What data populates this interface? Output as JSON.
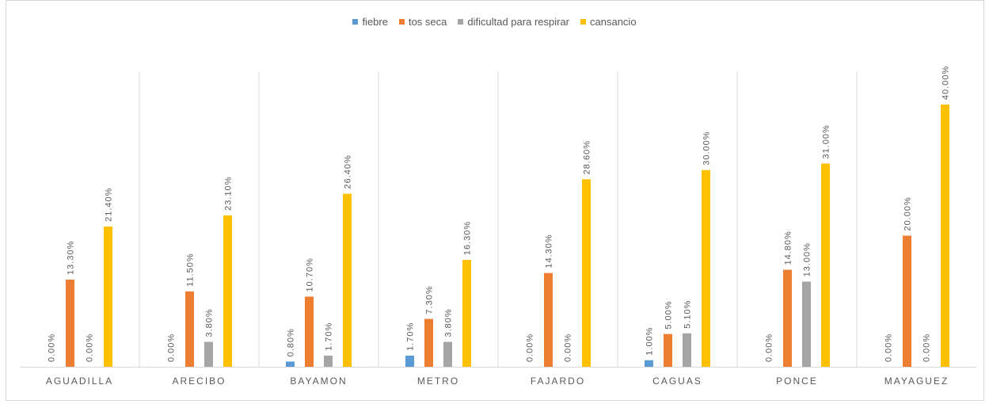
{
  "chart_data": {
    "type": "bar",
    "categories": [
      "AGUADILLA",
      "ARECIBO",
      "BAYAMON",
      "METRO",
      "FAJARDO",
      "CAGUAS",
      "PONCE",
      "MAYAGUEZ"
    ],
    "series": [
      {
        "name": "fiebre",
        "color": "#5b9bd5",
        "values": [
          0.0,
          0.0,
          0.8,
          1.7,
          0.0,
          1.0,
          0.0,
          0.0
        ],
        "labels": [
          "0.00%",
          "0.00%",
          "0.80%",
          "1.70%",
          "0.00%",
          "1.00%",
          "0.00%",
          "0.00%"
        ]
      },
      {
        "name": "tos seca",
        "color": "#ed7d31",
        "values": [
          13.3,
          11.5,
          10.7,
          7.3,
          14.3,
          5.0,
          14.8,
          20.0
        ],
        "labels": [
          "13.30%",
          "11.50%",
          "10.70%",
          "7.30%",
          "14.30%",
          "5.00%",
          "14.80%",
          "20.00%"
        ]
      },
      {
        "name": "dificultad para respirar",
        "color": "#a5a5a5",
        "values": [
          0.0,
          3.8,
          1.7,
          3.8,
          0.0,
          5.1,
          13.0,
          0.0
        ],
        "labels": [
          "0.00%",
          "3.80%",
          "1.70%",
          "3.80%",
          "0.00%",
          "5.10%",
          "13.00%",
          "0.00%"
        ]
      },
      {
        "name": "cansancio",
        "color": "#ffc000",
        "values": [
          21.4,
          23.1,
          26.4,
          16.3,
          28.6,
          30.0,
          31.0,
          40.0
        ],
        "labels": [
          "21.40%",
          "23.10%",
          "26.40%",
          "16.30%",
          "28.60%",
          "30.00%",
          "31.00%",
          "40.00%"
        ]
      }
    ],
    "ylim": [
      0,
      40
    ],
    "legend_position": "top",
    "grid": "vertical category separators"
  }
}
